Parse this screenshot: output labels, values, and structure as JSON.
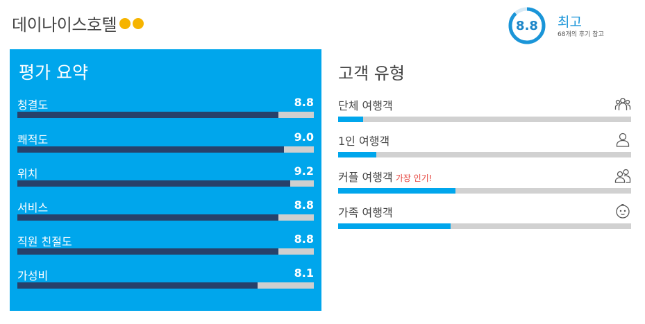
{
  "header": {
    "hotel_name": "데이나이스호텔",
    "dots_icon": "rating-dots-icon",
    "accent": "#f6b400"
  },
  "score": {
    "value": "8.8",
    "label": "최고",
    "subtitle": "68개의 후기 참고",
    "ring_fraction": 0.88,
    "ring_color": "#1a95d8"
  },
  "summary": {
    "title": "평가 요약",
    "bg_color": "#00a6ec",
    "items": [
      {
        "label": "청결도",
        "value": "8.8",
        "fraction": 0.88
      },
      {
        "label": "쾌적도",
        "value": "9.0",
        "fraction": 0.9
      },
      {
        "label": "위치",
        "value": "9.2",
        "fraction": 0.92
      },
      {
        "label": "서비스",
        "value": "8.8",
        "fraction": 0.88
      },
      {
        "label": "직원 친절도",
        "value": "8.8",
        "fraction": 0.88
      },
      {
        "label": "가성비",
        "value": "8.1",
        "fraction": 0.81
      }
    ]
  },
  "traveler_types": {
    "title": "고객 유형",
    "items": [
      {
        "label": "단체 여행객",
        "fraction": 0.085,
        "icon": "group-icon",
        "badge": ""
      },
      {
        "label": "1인 여행객",
        "fraction": 0.13,
        "icon": "single-person-icon",
        "badge": ""
      },
      {
        "label": "커플 여행객",
        "fraction": 0.4,
        "icon": "couple-icon",
        "badge": "가장 인기!"
      },
      {
        "label": "가족 여행객",
        "fraction": 0.385,
        "icon": "baby-face-icon",
        "badge": ""
      }
    ]
  }
}
